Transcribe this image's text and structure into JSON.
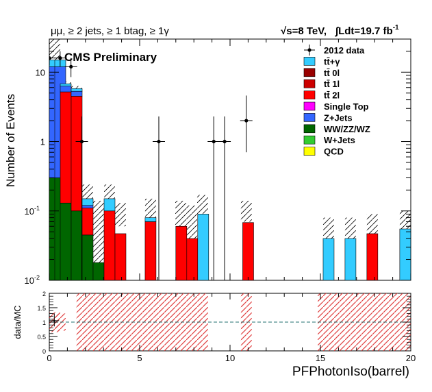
{
  "header": {
    "selection": "μμ, ≥ 2 jets, ≥ 1 btag, ≥ 1γ",
    "energy": "√s=8 TeV,",
    "lumi": "∫Ldt=19.7 fb",
    "lumi_exp": "-1",
    "experiment": "CMS Preliminary"
  },
  "chart_data": [
    {
      "type": "bar",
      "stacked": true,
      "log_y": true,
      "ylabel": "Number of Events",
      "xlabel": "",
      "xlim": [
        0,
        20
      ],
      "ylim": [
        0.01,
        30
      ],
      "bin_width": 0.606,
      "y_ticks": [
        {
          "v": 0.01,
          "label": "10",
          "exp": "-2"
        },
        {
          "v": 0.1,
          "label": "10",
          "exp": "-1"
        },
        {
          "v": 1,
          "label": "1",
          "exp": ""
        },
        {
          "v": 10,
          "label": "10",
          "exp": ""
        }
      ],
      "x_ticks": [
        {
          "v": 0,
          "label": "0"
        },
        {
          "v": 5,
          "label": "5"
        },
        {
          "v": 10,
          "label": "10"
        },
        {
          "v": 15,
          "label": "15"
        },
        {
          "v": 20,
          "label": "20"
        }
      ],
      "legend": {
        "placement": "top-right",
        "entries": [
          {
            "label": "2012 data",
            "kind": "data",
            "color": "#000000"
          },
          {
            "label": "tt̄+γ",
            "kind": "box",
            "color": "#33ccff"
          },
          {
            "label": "tt̄ 0l",
            "kind": "box",
            "color": "#990000"
          },
          {
            "label": "tt̄ 1l",
            "kind": "box",
            "color": "#cc0000"
          },
          {
            "label": "tt̄ 2l",
            "kind": "box",
            "color": "#ff0000"
          },
          {
            "label": "Single Top",
            "kind": "box",
            "color": "#ff00ff"
          },
          {
            "label": "Z+Jets",
            "kind": "box",
            "color": "#3366ff"
          },
          {
            "label": "WW/ZZ/WZ",
            "kind": "box",
            "color": "#006600"
          },
          {
            "label": "W+Jets",
            "kind": "box",
            "color": "#33cc33"
          },
          {
            "label": "QCD",
            "kind": "box",
            "color": "#ffff00"
          }
        ]
      },
      "stack_bins": [
        {
          "x": 0.0,
          "layers": [
            {
              "name": "WW/ZZ/WZ",
              "top": 0.3,
              "color": "#006600"
            },
            {
              "name": "Z+Jets",
              "top": 12,
              "color": "#3366ff"
            },
            {
              "name": "tt̄+γ",
              "top": 15,
              "color": "#33ccff"
            }
          ]
        },
        {
          "x": 0.303,
          "layers": [
            {
              "name": "WW/ZZ/WZ",
              "top": 0.3,
              "color": "#006600"
            },
            {
              "name": "Z+Jets",
              "top": 12,
              "color": "#3366ff"
            },
            {
              "name": "tt̄+γ",
              "top": 15,
              "color": "#33ccff"
            }
          ]
        },
        {
          "x": 0.606,
          "layers": [
            {
              "name": "WW/ZZ/WZ",
              "top": 0.13,
              "color": "#006600"
            },
            {
              "name": "tt̄ 2l",
              "top": 5.2,
              "color": "#ff0000"
            },
            {
              "name": "Z+Jets",
              "top": 6.3,
              "color": "#3366ff"
            },
            {
              "name": "tt̄+γ",
              "top": 6.8,
              "color": "#33ccff"
            }
          ]
        },
        {
          "x": 1.212,
          "layers": [
            {
              "name": "WW/ZZ/WZ",
              "top": 0.1,
              "color": "#006600"
            },
            {
              "name": "tt̄ 2l",
              "top": 4.5,
              "color": "#ff0000"
            },
            {
              "name": "Z+Jets",
              "top": 5.3,
              "color": "#3366ff"
            },
            {
              "name": "tt̄+γ",
              "top": 5.8,
              "color": "#33ccff"
            }
          ]
        },
        {
          "x": 1.818,
          "layers": [
            {
              "name": "WW/ZZ/WZ",
              "top": 0.045,
              "color": "#006600"
            },
            {
              "name": "tt̄ 2l",
              "top": 0.11,
              "color": "#ff0000"
            },
            {
              "name": "Z+Jets",
              "top": 0.12,
              "color": "#3366ff"
            },
            {
              "name": "tt̄+γ",
              "top": 0.15,
              "color": "#33ccff"
            }
          ]
        },
        {
          "x": 2.424,
          "layers": [
            {
              "name": "WW/ZZ/WZ",
              "top": 0.018,
              "color": "#006600"
            }
          ]
        },
        {
          "x": 3.03,
          "layers": [
            {
              "name": "tt̄ 2l",
              "top": 0.1,
              "color": "#ff0000"
            },
            {
              "name": "tt̄+γ",
              "top": 0.15,
              "color": "#33ccff"
            }
          ]
        },
        {
          "x": 3.636,
          "layers": [
            {
              "name": "tt̄ 2l",
              "top": 0.047,
              "color": "#ff0000"
            }
          ]
        },
        {
          "x": 5.3,
          "layers": [
            {
              "name": "tt̄ 2l",
              "top": 0.07,
              "color": "#ff0000"
            },
            {
              "name": "tt̄+γ",
              "top": 0.08,
              "color": "#33ccff"
            }
          ]
        },
        {
          "x": 7.0,
          "layers": [
            {
              "name": "tt̄ 2l",
              "top": 0.06,
              "color": "#ff0000"
            }
          ]
        },
        {
          "x": 7.606,
          "layers": [
            {
              "name": "tt̄ 2l",
              "top": 0.04,
              "color": "#ff0000"
            }
          ]
        },
        {
          "x": 8.212,
          "layers": [
            {
              "name": "tt̄+γ",
              "top": 0.09,
              "color": "#33ccff"
            }
          ]
        },
        {
          "x": 10.7,
          "layers": [
            {
              "name": "tt̄ 2l",
              "top": 0.068,
              "color": "#ff0000"
            }
          ]
        },
        {
          "x": 15.15,
          "layers": [
            {
              "name": "tt̄+γ",
              "top": 0.04,
              "color": "#33ccff"
            }
          ]
        },
        {
          "x": 16.36,
          "layers": [
            {
              "name": "tt̄+γ",
              "top": 0.04,
              "color": "#33ccff"
            }
          ]
        },
        {
          "x": 17.57,
          "layers": [
            {
              "name": "tt̄ 2l",
              "top": 0.047,
              "color": "#ff0000"
            }
          ]
        },
        {
          "x": 19.39,
          "layers": [
            {
              "name": "tt̄+γ",
              "top": 0.055,
              "color": "#33ccff"
            }
          ]
        }
      ],
      "uncertainty_bins": [
        {
          "x": 0.0,
          "lo": 0.01,
          "hi": 30
        },
        {
          "x": 0.606,
          "lo": 6.0,
          "hi": 7.3
        },
        {
          "x": 1.212,
          "lo": 5.3,
          "hi": 6.3
        },
        {
          "x": 1.818,
          "lo": 0.14,
          "hi": 0.24
        },
        {
          "x": 2.424,
          "lo": 0.01,
          "hi": 0.14
        },
        {
          "x": 3.03,
          "lo": 0.15,
          "hi": 0.24
        },
        {
          "x": 3.636,
          "lo": 0.06,
          "hi": 0.13
        },
        {
          "x": 5.3,
          "lo": 0.08,
          "hi": 0.15
        },
        {
          "x": 6.97,
          "lo": 0.06,
          "hi": 0.14
        },
        {
          "x": 7.58,
          "lo": 0.04,
          "hi": 0.12
        },
        {
          "x": 8.18,
          "lo": 0.09,
          "hi": 0.17
        },
        {
          "x": 10.6,
          "lo": 0.07,
          "hi": 0.14
        },
        {
          "x": 15.15,
          "lo": 0.04,
          "hi": 0.08
        },
        {
          "x": 16.36,
          "lo": 0.04,
          "hi": 0.08
        },
        {
          "x": 17.57,
          "lo": 0.047,
          "hi": 0.09
        },
        {
          "x": 19.39,
          "lo": 0.055,
          "hi": 0.1
        }
      ],
      "data_points": [
        {
          "x": 0.0,
          "y": 16,
          "lo": 12.5,
          "hi": 20
        },
        {
          "x": 0.6,
          "y": 16,
          "lo": 12,
          "hi": 20
        },
        {
          "x": 1.2,
          "y": 12,
          "lo": 8.5,
          "hi": 16
        },
        {
          "x": 1.8,
          "y": 1,
          "lo": 0.01,
          "hi": 2.3
        },
        {
          "x": 6.06,
          "y": 1,
          "lo": 0.01,
          "hi": 2.3
        },
        {
          "x": 9.1,
          "y": 1,
          "lo": 0.01,
          "hi": 2.3
        },
        {
          "x": 9.7,
          "y": 1,
          "lo": 0.01,
          "hi": 2.3
        },
        {
          "x": 10.9,
          "y": 2,
          "lo": 0.7,
          "hi": 4.6
        }
      ]
    },
    {
      "type": "scatter",
      "ylabel": "data/MC",
      "xlabel": "PFPhotonIso(barrel)",
      "xlim": [
        0,
        20
      ],
      "ylim": [
        0,
        2
      ],
      "reference_line": 1,
      "y_ticks": [
        {
          "v": 0,
          "label": "0"
        },
        {
          "v": 0.5,
          "label": "0.5"
        },
        {
          "v": 1,
          "label": "1"
        },
        {
          "v": 1.5,
          "label": "1.5"
        },
        {
          "v": 2,
          "label": "2"
        }
      ],
      "x_ticks": [
        {
          "v": 0,
          "label": "0"
        },
        {
          "v": 5,
          "label": "5"
        },
        {
          "v": 10,
          "label": "10"
        },
        {
          "v": 15,
          "label": "15"
        },
        {
          "v": 20,
          "label": "20"
        }
      ],
      "uncertainty_bins": [
        {
          "x": 0.0,
          "lo": 0.65,
          "hi": 1.35
        },
        {
          "x": 0.303,
          "lo": 0.7,
          "hi": 1.3
        },
        {
          "x": 1.5,
          "lo": 0,
          "hi": 2
        },
        {
          "x": 3.636,
          "lo": 0,
          "hi": 2
        },
        {
          "x": 5.15,
          "lo": 0,
          "hi": 2
        },
        {
          "x": 6.4,
          "lo": 0,
          "hi": 2
        },
        {
          "x": 8.18,
          "lo": 0,
          "hi": 2
        },
        {
          "x": 10.6,
          "lo": 0,
          "hi": 2
        },
        {
          "x": 14.85,
          "lo": 0,
          "hi": 2
        },
        {
          "x": 16.36,
          "lo": 0,
          "hi": 2
        },
        {
          "x": 17.57,
          "lo": 0,
          "hi": 2
        },
        {
          "x": 19.39,
          "lo": 0,
          "hi": 2
        }
      ],
      "data_points": [
        {
          "x": 0.05,
          "y": 1.05,
          "lo": 0.85,
          "hi": 1.3
        }
      ]
    }
  ]
}
